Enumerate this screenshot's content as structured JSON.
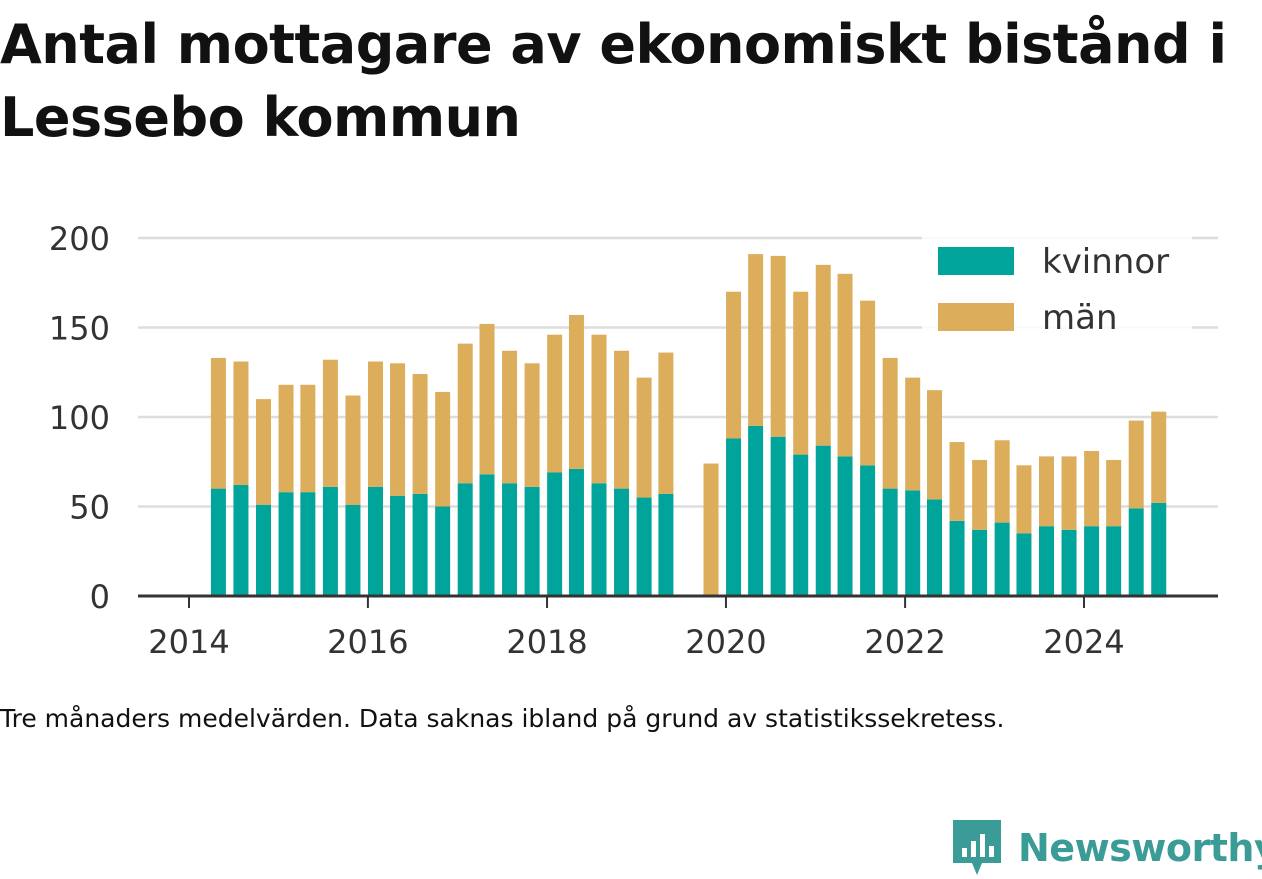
{
  "title": "Antal mottagare av ekonomiskt bistånd i Lessebo kommun",
  "note": "Tre månaders medelvärden. Data saknas ibland på grund av statistikssekretess.",
  "brand": "Newsworthy",
  "colors": {
    "kvinnor": "#00a49a",
    "man": "#dcae5c",
    "grid": "#dddddd",
    "axis": "#333333",
    "brand": "#3b9b96"
  },
  "chart_data": {
    "type": "bar",
    "stacked": true,
    "x": [
      "2014-05",
      "2014-08",
      "2014-11",
      "2015-02",
      "2015-05",
      "2015-08",
      "2015-11",
      "2016-02",
      "2016-05",
      "2016-08",
      "2016-11",
      "2017-02",
      "2017-05",
      "2017-08",
      "2017-11",
      "2018-02",
      "2018-05",
      "2018-08",
      "2018-11",
      "2019-02",
      "2019-05",
      "2019-11",
      "2020-02",
      "2020-05",
      "2020-08",
      "2020-11",
      "2021-02",
      "2021-05",
      "2021-08",
      "2021-11",
      "2022-02",
      "2022-05",
      "2022-08",
      "2022-11",
      "2023-02",
      "2023-05",
      "2023-08",
      "2023-11",
      "2024-02",
      "2024-05",
      "2024-08",
      "2024-11"
    ],
    "series": [
      {
        "name": "kvinnor",
        "values": [
          60,
          62,
          51,
          58,
          58,
          61,
          51,
          61,
          56,
          57,
          50,
          63,
          68,
          63,
          61,
          69,
          71,
          63,
          60,
          55,
          57,
          null,
          88,
          95,
          89,
          79,
          84,
          78,
          73,
          60,
          59,
          54,
          42,
          37,
          41,
          35,
          39,
          37,
          39,
          39,
          49,
          52
        ]
      },
      {
        "name": "män",
        "values": [
          73,
          69,
          59,
          60,
          60,
          71,
          61,
          70,
          74,
          67,
          64,
          78,
          84,
          74,
          69,
          77,
          86,
          83,
          77,
          67,
          79,
          74,
          82,
          96,
          101,
          91,
          101,
          102,
          92,
          73,
          63,
          61,
          44,
          39,
          46,
          38,
          39,
          41,
          42,
          37,
          49,
          51
        ]
      }
    ],
    "xticks": [
      "2014",
      "2016",
      "2018",
      "2020",
      "2022",
      "2024"
    ],
    "yticks": [
      0,
      50,
      100,
      150,
      200
    ],
    "ylim": [
      0,
      200
    ],
    "legend": "top-right",
    "grid": true
  }
}
